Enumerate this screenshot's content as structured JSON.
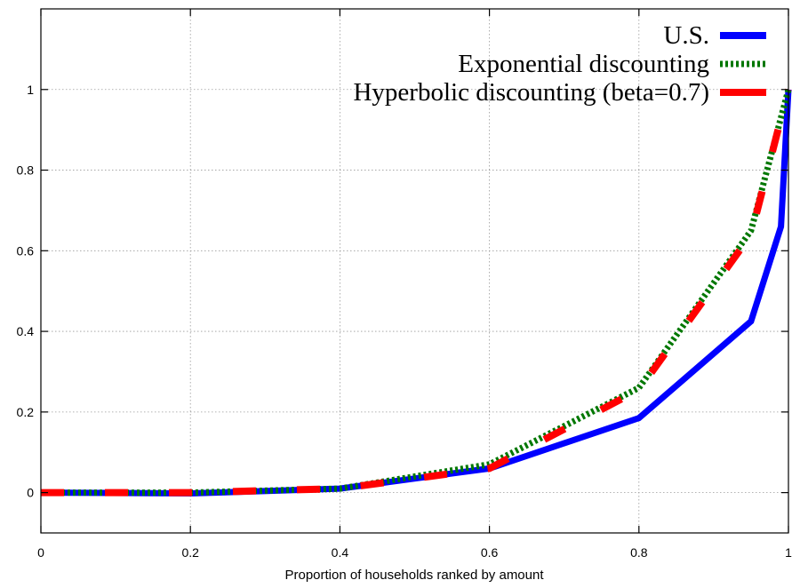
{
  "chart_data": {
    "type": "line",
    "title": "",
    "xlabel": "Proportion of households ranked by amount",
    "ylabel": "",
    "xlim": [
      0,
      1
    ],
    "ylim": [
      -0.1,
      1.2
    ],
    "grid": true,
    "legend_position": "top-right",
    "x_ticks": [
      "0",
      "0.2",
      "0.4",
      "0.6",
      "0.8",
      "1"
    ],
    "y_ticks": [
      "0",
      "0.2",
      "0.4",
      "0.6",
      "0.8",
      "1"
    ],
    "series": [
      {
        "name": "U.S.",
        "color": "#0000ff",
        "style": "solid",
        "x": [
          0,
          0.2,
          0.4,
          0.6,
          0.8,
          0.95,
          0.99,
          1.0
        ],
        "y": [
          0,
          -0.002,
          0.01,
          0.06,
          0.185,
          0.425,
          0.66,
          1.0
        ]
      },
      {
        "name": "Exponential discounting",
        "color": "#007700",
        "style": "dotted",
        "x": [
          0,
          0.2,
          0.4,
          0.6,
          0.8,
          0.95,
          1.0
        ],
        "y": [
          0,
          0,
          0.01,
          0.07,
          0.26,
          0.65,
          1.0
        ]
      },
      {
        "name": "Hyperbolic discounting (beta=0.7)",
        "color": "#ff0000",
        "style": "dashed",
        "x": [
          0,
          0.2,
          0.4,
          0.6,
          0.8,
          0.95,
          1.0
        ],
        "y": [
          0,
          0,
          0.01,
          0.06,
          0.255,
          0.64,
          1.0
        ]
      }
    ]
  }
}
